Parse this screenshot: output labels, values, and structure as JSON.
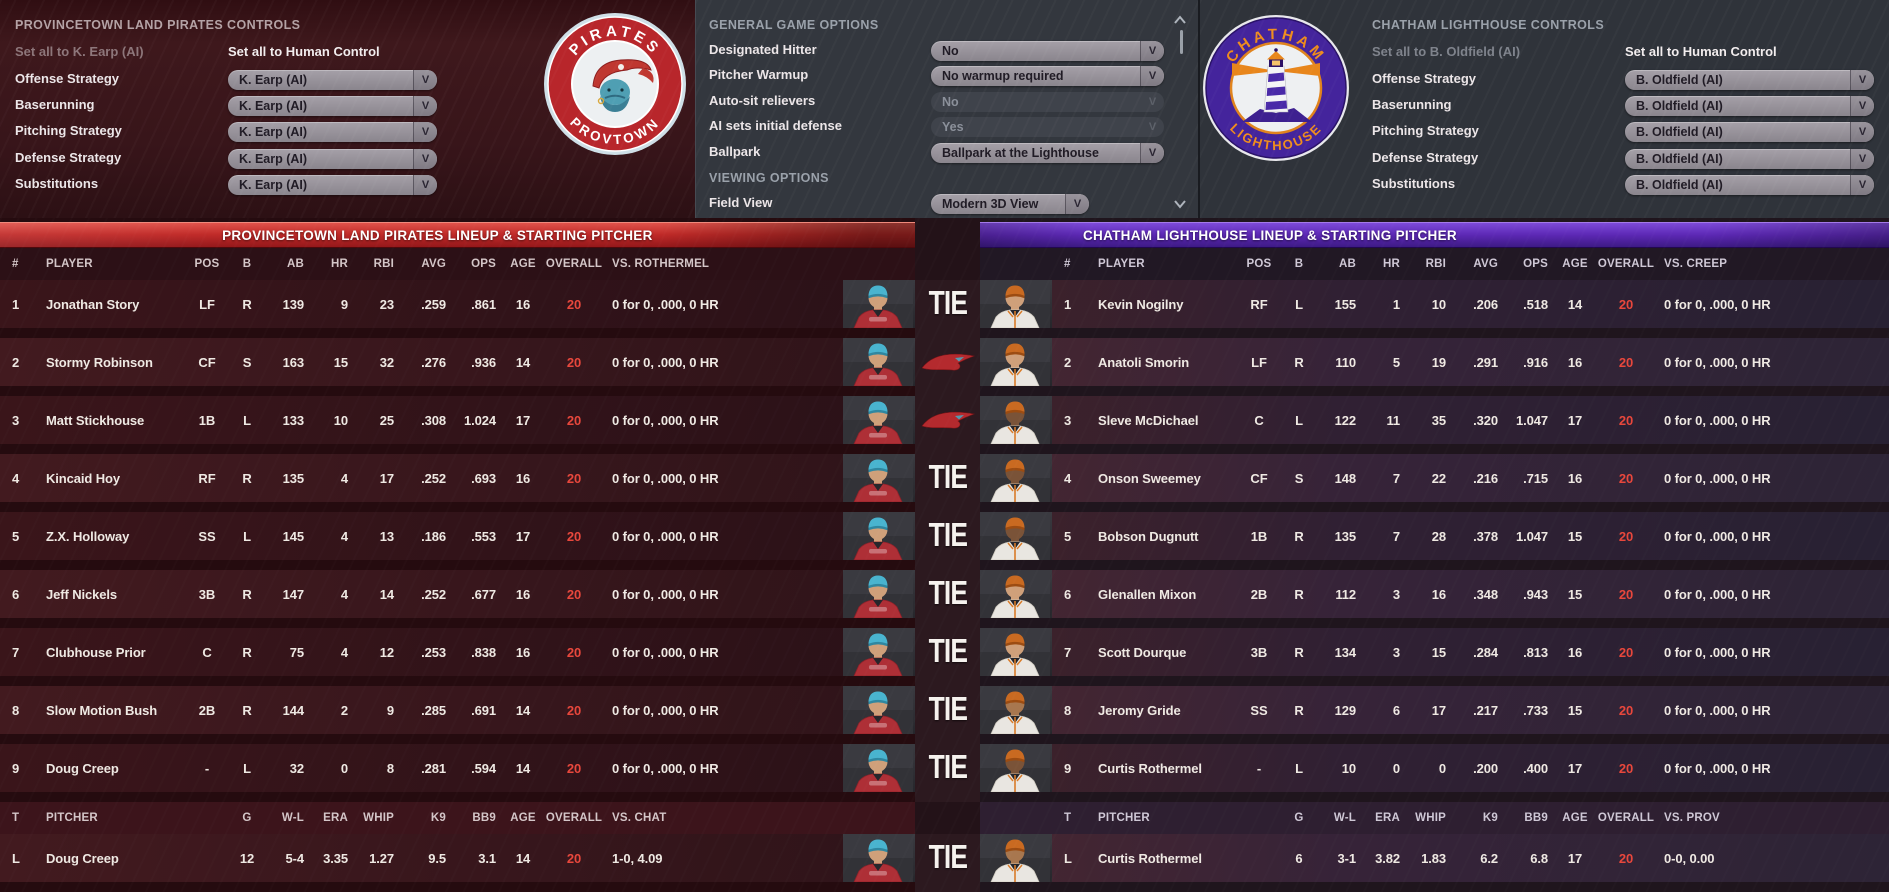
{
  "colors": {
    "left_accent": "#c02a28",
    "right_accent": "#5c28b4",
    "overall_red": "#e8473c",
    "pirates_red": "#b8262b",
    "chatham_purple": "#44249c",
    "chatham_orange": "#ef8d1d"
  },
  "icons": {
    "dropdown_chevron": "V"
  },
  "left_panel": {
    "title": "PROVINCETOWN LAND PIRATES CONTROLS",
    "set_all_ai": "Set all to K. Earp (AI)",
    "set_all_human": "Set all to Human Control",
    "rows": [
      {
        "label": "Offense Strategy",
        "value": "K. Earp (AI)",
        "enabled": true
      },
      {
        "label": "Baserunning",
        "value": "K. Earp (AI)",
        "enabled": true
      },
      {
        "label": "Pitching Strategy",
        "value": "K. Earp (AI)",
        "enabled": true
      },
      {
        "label": "Defense Strategy",
        "value": "K. Earp (AI)",
        "enabled": true
      },
      {
        "label": "Substitutions",
        "value": "K. Earp (AI)",
        "enabled": true
      }
    ]
  },
  "game_options": {
    "title": "GENERAL GAME OPTIONS",
    "rows": [
      {
        "label": "Designated Hitter",
        "value": "No",
        "enabled": true
      },
      {
        "label": "Pitcher Warmup",
        "value": "No warmup required",
        "enabled": true
      },
      {
        "label": "Auto-sit relievers",
        "value": "No",
        "enabled": false
      },
      {
        "label": "AI sets initial defense",
        "value": "Yes",
        "enabled": false
      },
      {
        "label": "Ballpark",
        "value": "Ballpark at the Lighthouse",
        "enabled": true
      }
    ],
    "viewing_title": "VIEWING OPTIONS",
    "viewing_rows": [
      {
        "label": "Field View",
        "value": "Modern 3D View",
        "enabled": true
      }
    ]
  },
  "right_panel": {
    "title": "CHATHAM LIGHTHOUSE CONTROLS",
    "set_all_ai": "Set all to B. Oldfield (AI)",
    "set_all_human": "Set all to Human Control",
    "rows": [
      {
        "label": "Offense Strategy",
        "value": "B. Oldfield (AI)",
        "enabled": true
      },
      {
        "label": "Baserunning",
        "value": "B. Oldfield (AI)",
        "enabled": true
      },
      {
        "label": "Pitching Strategy",
        "value": "B. Oldfield (AI)",
        "enabled": true
      },
      {
        "label": "Defense Strategy",
        "value": "B. Oldfield (AI)",
        "enabled": true
      },
      {
        "label": "Substitutions",
        "value": "B. Oldfield (AI)",
        "enabled": true
      }
    ]
  },
  "pirates_logo": {
    "top_text": "PIRATES",
    "bottom_text": "PROVTOWN"
  },
  "chatham_logo": {
    "top_text": "CHATHAM",
    "bottom_text": "LIGHTHOUSE"
  },
  "left_team": {
    "banner": "PROVINCETOWN LAND PIRATES LINEUP & STARTING PITCHER",
    "batter_headers": [
      "#",
      "PLAYER",
      "POS",
      "B",
      "AB",
      "HR",
      "RBI",
      "AVG",
      "OPS",
      "AGE",
      "OVERALL",
      "VS. ROTHERMEL"
    ],
    "batters": [
      {
        "num": 1,
        "name": "Jonathan Story",
        "pos": "LF",
        "b": "R",
        "ab": 139,
        "hr": 9,
        "rbi": 23,
        "avg": ".259",
        "ops": ".861",
        "age": 16,
        "overall": 20,
        "vs": "0 for 0, .000, 0 HR",
        "skin": "light"
      },
      {
        "num": 2,
        "name": "Stormy Robinson",
        "pos": "CF",
        "b": "S",
        "ab": 163,
        "hr": 15,
        "rbi": 32,
        "avg": ".276",
        "ops": ".936",
        "age": 14,
        "overall": 20,
        "vs": "0 for 0, .000, 0 HR",
        "skin": "light"
      },
      {
        "num": 3,
        "name": "Matt Stickhouse",
        "pos": "1B",
        "b": "L",
        "ab": 133,
        "hr": 10,
        "rbi": 25,
        "avg": ".308",
        "ops": "1.024",
        "age": 17,
        "overall": 20,
        "vs": "0 for 0, .000, 0 HR",
        "skin": "light"
      },
      {
        "num": 4,
        "name": "Kincaid Hoy",
        "pos": "RF",
        "b": "R",
        "ab": 135,
        "hr": 4,
        "rbi": 17,
        "avg": ".252",
        "ops": ".693",
        "age": 16,
        "overall": 20,
        "vs": "0 for 0, .000, 0 HR",
        "skin": "light"
      },
      {
        "num": 5,
        "name": "Z.X. Holloway",
        "pos": "SS",
        "b": "L",
        "ab": 145,
        "hr": 4,
        "rbi": 13,
        "avg": ".186",
        "ops": ".553",
        "age": 17,
        "overall": 20,
        "vs": "0 for 0, .000, 0 HR",
        "skin": "light"
      },
      {
        "num": 6,
        "name": "Jeff Nickels",
        "pos": "3B",
        "b": "R",
        "ab": 147,
        "hr": 4,
        "rbi": 14,
        "avg": ".252",
        "ops": ".677",
        "age": 16,
        "overall": 20,
        "vs": "0 for 0, .000, 0 HR",
        "skin": "light"
      },
      {
        "num": 7,
        "name": "Clubhouse Prior",
        "pos": "C",
        "b": "R",
        "ab": 75,
        "hr": 4,
        "rbi": 12,
        "avg": ".253",
        "ops": ".838",
        "age": 16,
        "overall": 20,
        "vs": "0 for 0, .000, 0 HR",
        "skin": "light"
      },
      {
        "num": 8,
        "name": "Slow Motion Bush",
        "pos": "2B",
        "b": "R",
        "ab": 144,
        "hr": 2,
        "rbi": 9,
        "avg": ".285",
        "ops": ".691",
        "age": 14,
        "overall": 20,
        "vs": "0 for 0, .000, 0 HR",
        "skin": "light"
      },
      {
        "num": 9,
        "name": "Doug Creep",
        "pos": "-",
        "b": "L",
        "ab": 32,
        "hr": 0,
        "rbi": 8,
        "avg": ".281",
        "ops": ".594",
        "age": 14,
        "overall": 20,
        "vs": "0 for 0, .000, 0 HR",
        "skin": "light"
      }
    ],
    "pitcher_headers": [
      "T",
      "PITCHER",
      "G",
      "W-L",
      "ERA",
      "WHIP",
      "K9",
      "BB9",
      "AGE",
      "OVERALL",
      "VS. CHAT"
    ],
    "pitchers": [
      {
        "t": "L",
        "name": "Doug Creep",
        "g": 12,
        "wl": "5-4",
        "era": "3.35",
        "whip": "1.27",
        "k9": "9.5",
        "bb9": "3.1",
        "age": 14,
        "overall": 20,
        "vs": "1-0, 4.09",
        "skin": "light"
      }
    ]
  },
  "right_team": {
    "banner": "CHATHAM LIGHTHOUSE LINEUP & STARTING PITCHER",
    "batter_headers": [
      "#",
      "PLAYER",
      "POS",
      "B",
      "AB",
      "HR",
      "RBI",
      "AVG",
      "OPS",
      "AGE",
      "OVERALL",
      "VS. CREEP"
    ],
    "batters": [
      {
        "num": 1,
        "name": "Kevin Nogilny",
        "pos": "RF",
        "b": "L",
        "ab": 155,
        "hr": 1,
        "rbi": 10,
        "avg": ".206",
        "ops": ".518",
        "age": 14,
        "overall": 20,
        "vs": "0 for 0, .000, 0 HR",
        "skin": "light"
      },
      {
        "num": 2,
        "name": "Anatoli Smorin",
        "pos": "LF",
        "b": "R",
        "ab": 110,
        "hr": 5,
        "rbi": 19,
        "avg": ".291",
        "ops": ".916",
        "age": 16,
        "overall": 20,
        "vs": "0 for 0, .000, 0 HR",
        "skin": "light"
      },
      {
        "num": 3,
        "name": "Sleve McDichael",
        "pos": "C",
        "b": "L",
        "ab": 122,
        "hr": 11,
        "rbi": 35,
        "avg": ".320",
        "ops": "1.047",
        "age": 17,
        "overall": 20,
        "vs": "0 for 0, .000, 0 HR",
        "skin": "dark"
      },
      {
        "num": 4,
        "name": "Onson Sweemey",
        "pos": "CF",
        "b": "S",
        "ab": 148,
        "hr": 7,
        "rbi": 22,
        "avg": ".216",
        "ops": ".715",
        "age": 16,
        "overall": 20,
        "vs": "0 for 0, .000, 0 HR",
        "skin": "dark"
      },
      {
        "num": 5,
        "name": "Bobson Dugnutt",
        "pos": "1B",
        "b": "R",
        "ab": 135,
        "hr": 7,
        "rbi": 28,
        "avg": ".378",
        "ops": "1.047",
        "age": 15,
        "overall": 20,
        "vs": "0 for 0, .000, 0 HR",
        "skin": "dark"
      },
      {
        "num": 6,
        "name": "Glenallen Mixon",
        "pos": "2B",
        "b": "R",
        "ab": 112,
        "hr": 3,
        "rbi": 16,
        "avg": ".348",
        "ops": ".943",
        "age": 15,
        "overall": 20,
        "vs": "0 for 0, .000, 0 HR",
        "skin": "light"
      },
      {
        "num": 7,
        "name": "Scott Dourque",
        "pos": "3B",
        "b": "R",
        "ab": 134,
        "hr": 3,
        "rbi": 15,
        "avg": ".284",
        "ops": ".813",
        "age": 16,
        "overall": 20,
        "vs": "0 for 0, .000, 0 HR",
        "skin": "light"
      },
      {
        "num": 8,
        "name": "Jeromy Gride",
        "pos": "SS",
        "b": "R",
        "ab": 129,
        "hr": 6,
        "rbi": 17,
        "avg": ".217",
        "ops": ".733",
        "age": 15,
        "overall": 20,
        "vs": "0 for 0, .000, 0 HR",
        "skin": "medium"
      },
      {
        "num": 9,
        "name": "Curtis Rothermel",
        "pos": "-",
        "b": "L",
        "ab": 10,
        "hr": 0,
        "rbi": 0,
        "avg": ".200",
        "ops": ".400",
        "age": 17,
        "overall": 20,
        "vs": "0 for 0, .000, 0 HR",
        "skin": "dark"
      }
    ],
    "pitcher_headers": [
      "T",
      "PITCHER",
      "G",
      "W-L",
      "ERA",
      "WHIP",
      "K9",
      "BB9",
      "AGE",
      "OVERALL",
      "VS. PROV"
    ],
    "pitchers": [
      {
        "t": "L",
        "name": "Curtis Rothermel",
        "g": 6,
        "wl": "3-1",
        "era": "3.82",
        "whip": "1.83",
        "k9": "6.2",
        "bb9": "6.8",
        "age": 17,
        "overall": 20,
        "vs": "0-0, 0.00",
        "skin": "medium"
      }
    ]
  },
  "center_column": {
    "batter_cells": [
      "TIE",
      "pirates-logo",
      "pirates-logo",
      "TIE",
      "TIE",
      "TIE",
      "TIE",
      "TIE",
      "TIE"
    ],
    "pitcher_cell": "TIE",
    "tie_label": "TIE"
  }
}
